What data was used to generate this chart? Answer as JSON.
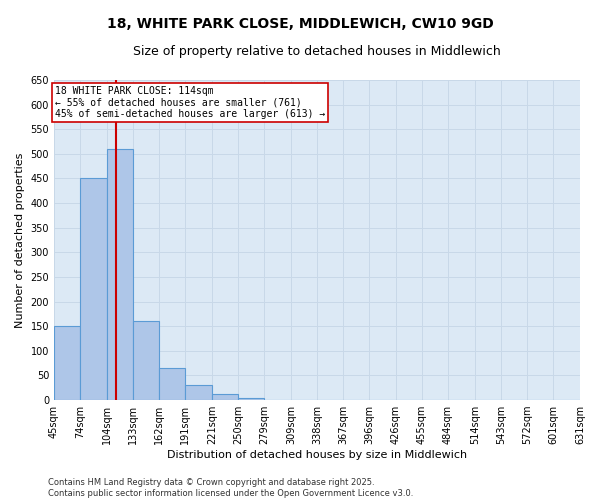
{
  "title_line1": "18, WHITE PARK CLOSE, MIDDLEWICH, CW10 9GD",
  "title_line2": "Size of property relative to detached houses in Middlewich",
  "xlabel": "Distribution of detached houses by size in Middlewich",
  "ylabel": "Number of detached properties",
  "bar_edges": [
    45,
    74,
    104,
    133,
    162,
    191,
    221,
    250,
    279,
    309,
    338,
    367,
    396,
    426,
    455,
    484,
    514,
    543,
    572,
    601,
    631
  ],
  "bar_heights": [
    150,
    450,
    510,
    160,
    65,
    30,
    13,
    5,
    0,
    0,
    0,
    0,
    0,
    0,
    0,
    0,
    0,
    0,
    0,
    0
  ],
  "bar_color": "#aec6e8",
  "bar_edgecolor": "#5b9bd5",
  "bar_linewidth": 0.8,
  "vline_x": 114,
  "vline_color": "#cc0000",
  "vline_linewidth": 1.5,
  "annotation_text": "18 WHITE PARK CLOSE: 114sqm\n← 55% of detached houses are smaller (761)\n45% of semi-detached houses are larger (613) →",
  "ylim": [
    0,
    650
  ],
  "yticks": [
    0,
    50,
    100,
    150,
    200,
    250,
    300,
    350,
    400,
    450,
    500,
    550,
    600,
    650
  ],
  "tick_labels": [
    "45sqm",
    "74sqm",
    "104sqm",
    "133sqm",
    "162sqm",
    "191sqm",
    "221sqm",
    "250sqm",
    "279sqm",
    "309sqm",
    "338sqm",
    "367sqm",
    "396sqm",
    "426sqm",
    "455sqm",
    "484sqm",
    "514sqm",
    "543sqm",
    "572sqm",
    "601sqm",
    "631sqm"
  ],
  "grid_color": "#c8d8e8",
  "bg_color": "#dce9f5",
  "footnote": "Contains HM Land Registry data © Crown copyright and database right 2025.\nContains public sector information licensed under the Open Government Licence v3.0.",
  "title_fontsize": 10,
  "subtitle_fontsize": 9,
  "axis_label_fontsize": 8,
  "tick_fontsize": 7,
  "footnote_fontsize": 6
}
